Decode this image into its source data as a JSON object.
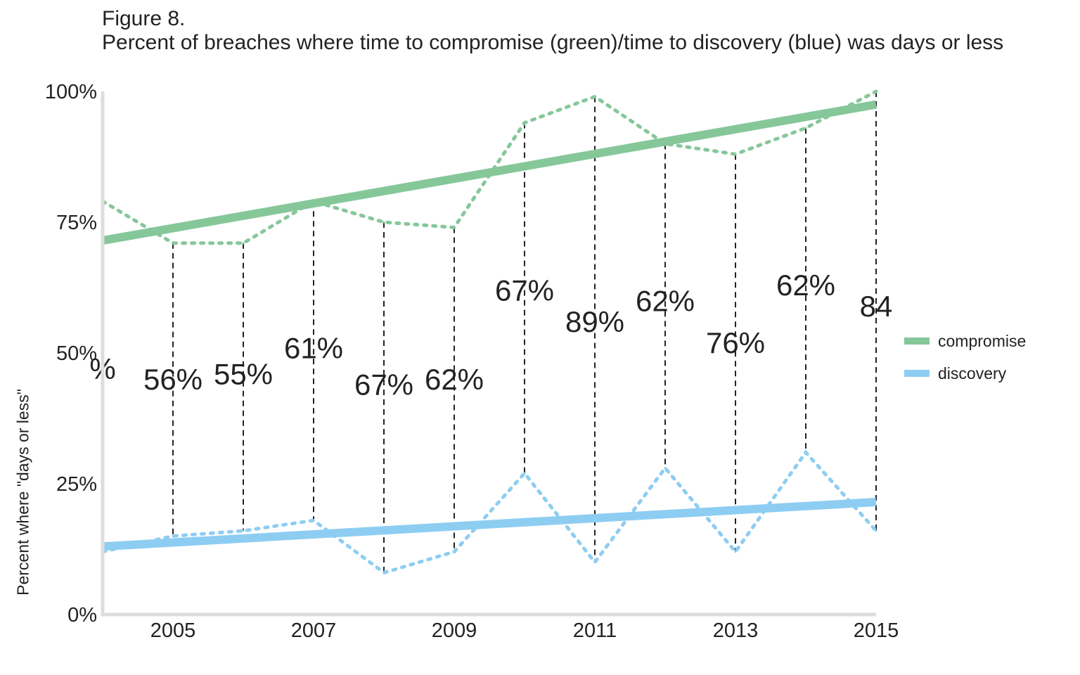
{
  "figure": {
    "label": "Figure 8.",
    "title": "Percent of breaches where time to compromise (green)/time to discovery (blue) was days or less"
  },
  "chart_data": {
    "type": "line",
    "title": "Percent of breaches where time to compromise (green)/time to discovery (blue) was days or less",
    "xlabel": "",
    "ylabel": "Percent where \"days or less\"",
    "x": [
      2004,
      2005,
      2006,
      2007,
      2008,
      2009,
      2010,
      2011,
      2012,
      2013,
      2014,
      2015
    ],
    "xlim": [
      2004,
      2015
    ],
    "ylim": [
      0,
      100
    ],
    "xticks": [
      2005,
      2007,
      2009,
      2011,
      2013,
      2015
    ],
    "yticks": [
      0,
      25,
      50,
      75,
      100
    ],
    "ytick_labels": [
      "0%",
      "25%",
      "50%",
      "75%",
      "100%"
    ],
    "series": [
      {
        "name": "compromise",
        "color": "#86c79a",
        "values": [
          79,
          71,
          71,
          79,
          75,
          74,
          94,
          99,
          90,
          88,
          93,
          100
        ],
        "trend": [
          71.5,
          97.5
        ]
      },
      {
        "name": "discovery",
        "color": "#8ecdf2",
        "values": [
          12,
          15,
          16,
          18,
          8,
          12,
          27,
          10,
          28,
          12,
          31,
          16
        ],
        "trend": [
          13,
          21.5
        ]
      }
    ],
    "gap_labels": [
      {
        "x": 2004,
        "text": "%",
        "y": 45
      },
      {
        "x": 2005,
        "text": "56%",
        "y": 43
      },
      {
        "x": 2006,
        "text": "55%",
        "y": 44
      },
      {
        "x": 2007,
        "text": "61%",
        "y": 49
      },
      {
        "x": 2008,
        "text": "67%",
        "y": 42
      },
      {
        "x": 2009,
        "text": "62%",
        "y": 43
      },
      {
        "x": 2010,
        "text": "67%",
        "y": 60
      },
      {
        "x": 2011,
        "text": "89%",
        "y": 54
      },
      {
        "x": 2012,
        "text": "62%",
        "y": 58
      },
      {
        "x": 2013,
        "text": "76%",
        "y": 50
      },
      {
        "x": 2014,
        "text": "62%",
        "y": 61
      },
      {
        "x": 2015,
        "text": "84",
        "y": 57
      }
    ],
    "legend": {
      "position": "right",
      "items": [
        "compromise",
        "discovery"
      ]
    }
  }
}
